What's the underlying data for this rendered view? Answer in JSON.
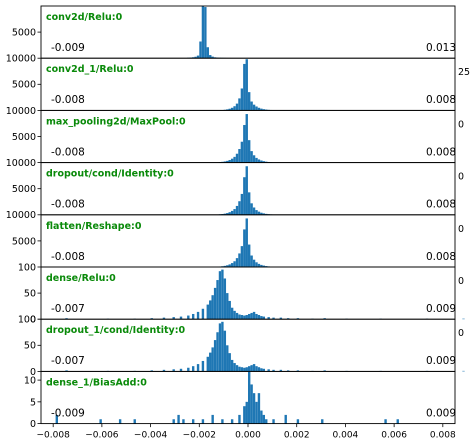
{
  "chart_data": {
    "type": "histogram-stack",
    "xlim": [
      -0.0085,
      0.0085
    ],
    "x_ticks": [
      "−0.008",
      "−0.006",
      "−0.004",
      "−0.002",
      "0.000",
      "0.002",
      "0.004",
      "0.006",
      "0.008"
    ],
    "x_tick_values": [
      -0.008,
      -0.006,
      -0.004,
      -0.002,
      0.0,
      0.002,
      0.004,
      0.006,
      0.008
    ],
    "clipped_edge_ticks": [
      "25",
      "0",
      "0",
      "0",
      "0",
      "0"
    ],
    "panels": [
      {
        "title": "conv2d/Relu:0",
        "min_label": "-0.009",
        "max_label": "0.013",
        "ylim": [
          0,
          10000
        ],
        "yticks": [
          "5000"
        ],
        "ytick_values": [
          5000
        ],
        "bins": [
          [
            -0.0025,
            90
          ],
          [
            -0.0024,
            130
          ],
          [
            -0.0023,
            180
          ],
          [
            -0.0022,
            280
          ],
          [
            -0.0021,
            500
          ],
          [
            -0.002,
            3200
          ],
          [
            -0.0019,
            11000
          ],
          [
            -0.0018,
            9800
          ],
          [
            -0.0017,
            2100
          ],
          [
            -0.0016,
            600
          ],
          [
            -0.0015,
            300
          ],
          [
            -0.0014,
            170
          ],
          [
            -0.0013,
            120
          ],
          [
            -0.0012,
            90
          ],
          [
            -0.0011,
            70
          ],
          [
            -0.001,
            55
          ],
          [
            -0.0009,
            45
          ],
          [
            -0.0008,
            40
          ],
          [
            -0.0007,
            35
          ],
          [
            -0.0006,
            30
          ],
          [
            -0.0005,
            26
          ],
          [
            -0.0004,
            24
          ],
          [
            -0.0003,
            22
          ],
          [
            -0.0002,
            20
          ]
        ]
      },
      {
        "title": "conv2d_1/Relu:0",
        "min_label": "-0.008",
        "max_label": "0.008",
        "ylim": [
          0,
          10000
        ],
        "yticks": [
          "5000",
          "10000"
        ],
        "ytick_values": [
          5000,
          10000
        ],
        "bins": [
          [
            -0.001,
            120
          ],
          [
            -0.0009,
            200
          ],
          [
            -0.0008,
            320
          ],
          [
            -0.0007,
            500
          ],
          [
            -0.0006,
            800
          ],
          [
            -0.0005,
            1300
          ],
          [
            -0.0004,
            2300
          ],
          [
            -0.0003,
            4200
          ],
          [
            -0.0002,
            8900
          ],
          [
            -0.0001,
            9800
          ],
          [
            0.0,
            3500
          ],
          [
            0.0001,
            1700
          ],
          [
            0.0002,
            1100
          ],
          [
            0.0003,
            750
          ],
          [
            0.0004,
            500
          ],
          [
            0.0005,
            340
          ],
          [
            0.0006,
            230
          ],
          [
            0.0007,
            160
          ],
          [
            0.0008,
            110
          ],
          [
            0.0009,
            80
          ],
          [
            0.001,
            60
          ]
        ]
      },
      {
        "title": "max_pooling2d/MaxPool:0",
        "min_label": "-0.008",
        "max_label": "0.008",
        "ylim": [
          0,
          10000
        ],
        "yticks": [
          "5000",
          "10000"
        ],
        "ytick_values": [
          5000,
          10000
        ],
        "bins": [
          [
            -0.0012,
            100
          ],
          [
            -0.0011,
            150
          ],
          [
            -0.001,
            220
          ],
          [
            -0.0009,
            330
          ],
          [
            -0.0008,
            500
          ],
          [
            -0.0007,
            750
          ],
          [
            -0.0006,
            1100
          ],
          [
            -0.0005,
            1700
          ],
          [
            -0.0004,
            2600
          ],
          [
            -0.0003,
            4000
          ],
          [
            -0.0002,
            7200
          ],
          [
            -0.0001,
            9300
          ],
          [
            0.0,
            4300
          ],
          [
            0.0001,
            2200
          ],
          [
            0.0002,
            1400
          ],
          [
            0.0003,
            900
          ],
          [
            0.0004,
            600
          ],
          [
            0.0005,
            400
          ],
          [
            0.0006,
            270
          ],
          [
            0.0007,
            180
          ],
          [
            0.0008,
            120
          ],
          [
            0.0009,
            80
          ]
        ]
      },
      {
        "title": "dropout/cond/Identity:0",
        "min_label": "-0.008",
        "max_label": "0.008",
        "ylim": [
          0,
          10000
        ],
        "yticks": [
          "5000",
          "10000"
        ],
        "ytick_values": [
          5000,
          10000
        ],
        "bins": [
          [
            -0.0012,
            100
          ],
          [
            -0.0011,
            150
          ],
          [
            -0.001,
            220
          ],
          [
            -0.0009,
            330
          ],
          [
            -0.0008,
            500
          ],
          [
            -0.0007,
            750
          ],
          [
            -0.0006,
            1100
          ],
          [
            -0.0005,
            1700
          ],
          [
            -0.0004,
            2600
          ],
          [
            -0.0003,
            4000
          ],
          [
            -0.0002,
            7200
          ],
          [
            -0.0001,
            9300
          ],
          [
            0.0,
            4300
          ],
          [
            0.0001,
            2200
          ],
          [
            0.0002,
            1400
          ],
          [
            0.0003,
            900
          ],
          [
            0.0004,
            600
          ],
          [
            0.0005,
            400
          ],
          [
            0.0006,
            270
          ],
          [
            0.0007,
            180
          ],
          [
            0.0008,
            120
          ],
          [
            0.0009,
            80
          ]
        ]
      },
      {
        "title": "flatten/Reshape:0",
        "min_label": "-0.008",
        "max_label": "0.008",
        "ylim": [
          0,
          10000
        ],
        "yticks": [
          "5000",
          "10000"
        ],
        "ytick_values": [
          5000,
          10000
        ],
        "bins": [
          [
            -0.0012,
            100
          ],
          [
            -0.0011,
            150
          ],
          [
            -0.001,
            220
          ],
          [
            -0.0009,
            330
          ],
          [
            -0.0008,
            500
          ],
          [
            -0.0007,
            750
          ],
          [
            -0.0006,
            1100
          ],
          [
            -0.0005,
            1700
          ],
          [
            -0.0004,
            2600
          ],
          [
            -0.0003,
            4000
          ],
          [
            -0.0002,
            7200
          ],
          [
            -0.0001,
            9300
          ],
          [
            0.0,
            4300
          ],
          [
            0.0001,
            2200
          ],
          [
            0.0002,
            1400
          ],
          [
            0.0003,
            900
          ],
          [
            0.0004,
            600
          ],
          [
            0.0005,
            400
          ],
          [
            0.0006,
            270
          ],
          [
            0.0007,
            180
          ],
          [
            0.0008,
            120
          ],
          [
            0.0009,
            80
          ]
        ]
      },
      {
        "title": "dense/Relu:0",
        "min_label": "-0.007",
        "max_label": "0.009",
        "ylim": [
          0,
          100
        ],
        "yticks": [
          "0",
          "50",
          "100"
        ],
        "ytick_values": [
          0,
          50,
          100
        ],
        "bins": [
          [
            -0.0075,
            2
          ],
          [
            -0.0058,
            1
          ],
          [
            -0.0047,
            1
          ],
          [
            -0.004,
            2
          ],
          [
            -0.0035,
            3
          ],
          [
            -0.0031,
            4
          ],
          [
            -0.0028,
            5
          ],
          [
            -0.0025,
            7
          ],
          [
            -0.0023,
            10
          ],
          [
            -0.0021,
            14
          ],
          [
            -0.0019,
            20
          ],
          [
            -0.0017,
            28
          ],
          [
            -0.0016,
            36
          ],
          [
            -0.0015,
            46
          ],
          [
            -0.0014,
            60
          ],
          [
            -0.0013,
            75
          ],
          [
            -0.0012,
            92
          ],
          [
            -0.0011,
            95
          ],
          [
            -0.001,
            78
          ],
          [
            -0.0009,
            50
          ],
          [
            -0.0008,
            35
          ],
          [
            -0.0007,
            22
          ],
          [
            -0.0006,
            16
          ],
          [
            -0.0005,
            12
          ],
          [
            -0.0004,
            9
          ],
          [
            -0.0003,
            8
          ],
          [
            -0.0002,
            7
          ],
          [
            -0.0001,
            8
          ],
          [
            0.0,
            10
          ],
          [
            0.0001,
            12
          ],
          [
            0.0002,
            14
          ],
          [
            0.0003,
            10
          ],
          [
            0.0004,
            8
          ],
          [
            0.0005,
            6
          ],
          [
            0.0006,
            5
          ],
          [
            0.0008,
            4
          ],
          [
            0.001,
            3
          ],
          [
            0.0013,
            3
          ],
          [
            0.0016,
            2
          ],
          [
            0.002,
            2
          ],
          [
            0.0026,
            1
          ],
          [
            0.0031,
            2
          ],
          [
            0.004,
            1
          ],
          [
            0.0054,
            1
          ],
          [
            0.0073,
            1
          ],
          [
            0.0088,
            1
          ]
        ]
      },
      {
        "title": "dropout_1/cond/Identity:0",
        "min_label": "-0.007",
        "max_label": "0.009",
        "ylim": [
          0,
          100
        ],
        "yticks": [
          "0",
          "50",
          "100"
        ],
        "ytick_values": [
          0,
          50,
          100
        ],
        "bins": [
          [
            -0.0075,
            2
          ],
          [
            -0.0058,
            1
          ],
          [
            -0.0047,
            1
          ],
          [
            -0.004,
            2
          ],
          [
            -0.0035,
            3
          ],
          [
            -0.0031,
            4
          ],
          [
            -0.0028,
            5
          ],
          [
            -0.0025,
            7
          ],
          [
            -0.0023,
            10
          ],
          [
            -0.0021,
            14
          ],
          [
            -0.0019,
            20
          ],
          [
            -0.0017,
            28
          ],
          [
            -0.0016,
            36
          ],
          [
            -0.0015,
            46
          ],
          [
            -0.0014,
            60
          ],
          [
            -0.0013,
            75
          ],
          [
            -0.0012,
            92
          ],
          [
            -0.0011,
            95
          ],
          [
            -0.001,
            78
          ],
          [
            -0.0009,
            50
          ],
          [
            -0.0008,
            35
          ],
          [
            -0.0007,
            22
          ],
          [
            -0.0006,
            16
          ],
          [
            -0.0005,
            12
          ],
          [
            -0.0004,
            9
          ],
          [
            -0.0003,
            8
          ],
          [
            -0.0002,
            7
          ],
          [
            -0.0001,
            8
          ],
          [
            0.0,
            10
          ],
          [
            0.0001,
            12
          ],
          [
            0.0002,
            14
          ],
          [
            0.0003,
            10
          ],
          [
            0.0004,
            8
          ],
          [
            0.0005,
            6
          ],
          [
            0.0006,
            5
          ],
          [
            0.0008,
            4
          ],
          [
            0.001,
            3
          ],
          [
            0.0013,
            3
          ],
          [
            0.0016,
            2
          ],
          [
            0.002,
            2
          ],
          [
            0.0026,
            1
          ],
          [
            0.0031,
            2
          ],
          [
            0.004,
            1
          ],
          [
            0.0054,
            1
          ],
          [
            0.0073,
            1
          ],
          [
            0.0088,
            1
          ]
        ]
      },
      {
        "title": "dense_1/BiasAdd:0",
        "min_label": "-0.009",
        "max_label": "0.009",
        "ylim": [
          0,
          12
        ],
        "yticks": [
          "0",
          "5",
          "10"
        ],
        "ytick_values": [
          0,
          5,
          10
        ],
        "bins": [
          [
            -0.0079,
            2
          ],
          [
            -0.0061,
            1
          ],
          [
            -0.0053,
            1
          ],
          [
            -0.0047,
            1
          ],
          [
            -0.0031,
            1
          ],
          [
            -0.0029,
            2
          ],
          [
            -0.0027,
            1
          ],
          [
            -0.0023,
            1
          ],
          [
            -0.0019,
            1
          ],
          [
            -0.0015,
            2
          ],
          [
            -0.0011,
            1
          ],
          [
            -0.0007,
            1
          ],
          [
            -0.0004,
            2
          ],
          [
            -0.0002,
            4
          ],
          [
            -0.0001,
            5
          ],
          [
            0.0,
            12
          ],
          [
            0.0001,
            9
          ],
          [
            0.0002,
            7
          ],
          [
            0.0003,
            5
          ],
          [
            0.0004,
            7
          ],
          [
            0.0005,
            3
          ],
          [
            0.0006,
            2
          ],
          [
            0.0007,
            1
          ],
          [
            0.001,
            1
          ],
          [
            0.0015,
            2
          ],
          [
            0.002,
            1
          ],
          [
            0.003,
            1
          ],
          [
            0.0056,
            1
          ],
          [
            0.0061,
            1
          ]
        ]
      }
    ]
  }
}
